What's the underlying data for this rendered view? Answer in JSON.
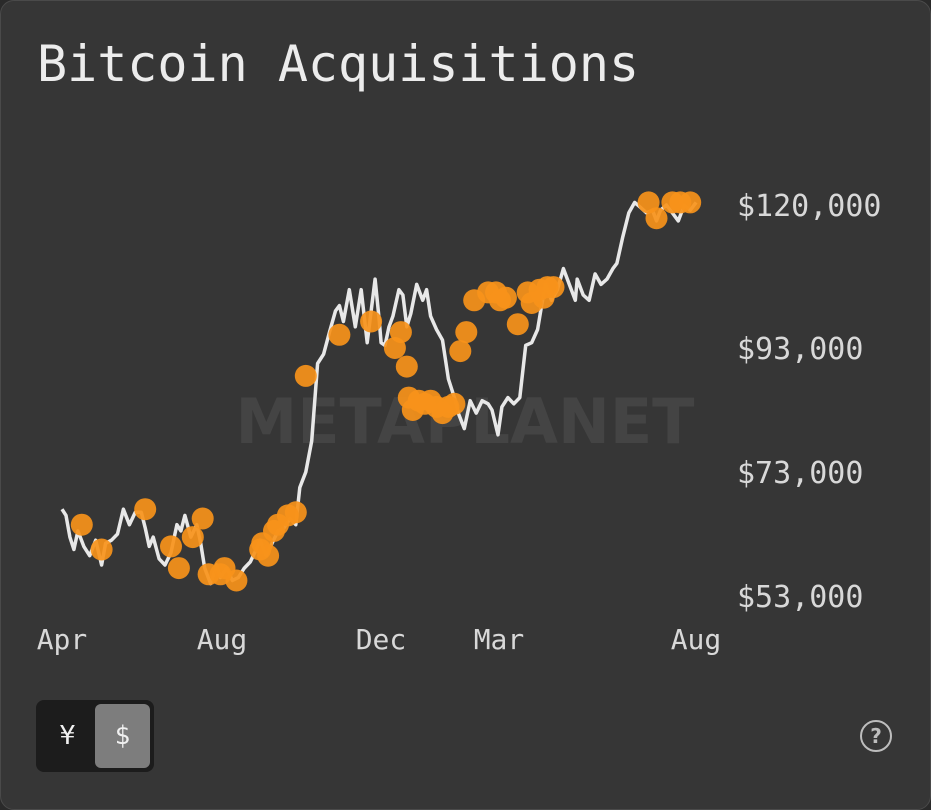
{
  "title": "Bitcoin Acquisitions",
  "watermark": "METAPLANET",
  "currency_toggle": {
    "options": [
      "¥",
      "$"
    ],
    "selected": "$"
  },
  "help_icon": "question-circle-icon",
  "colors": {
    "background": "#363636",
    "line": "#e8e8e8",
    "marker": "#f7931a",
    "text": "#d8d8d8"
  },
  "chart_data": {
    "type": "line",
    "title": "Bitcoin Acquisitions",
    "x_tick_labels": [
      "Apr",
      "Aug",
      "Dec",
      "Mar",
      "Aug"
    ],
    "y_tick_labels": [
      "$120,000",
      "$93,000",
      "$73,000",
      "$53,000"
    ],
    "y_ticks": [
      120000,
      93000,
      73000,
      53000
    ],
    "ylim": [
      53000,
      120000
    ],
    "xlim": [
      0,
      16.4
    ],
    "price_series": {
      "x": [
        0.0,
        0.1,
        0.2,
        0.3,
        0.4,
        0.55,
        0.7,
        0.85,
        1.0,
        1.1,
        1.25,
        1.4,
        1.55,
        1.7,
        1.85,
        2.0,
        2.1,
        2.2,
        2.3,
        2.45,
        2.6,
        2.75,
        2.9,
        3.0,
        3.1,
        3.25,
        3.4,
        3.5,
        3.6,
        3.75,
        3.9,
        4.0,
        4.15,
        4.3,
        4.45,
        4.6,
        4.75,
        4.9,
        5.0,
        5.15,
        5.3,
        5.45,
        5.6,
        5.75,
        5.9,
        6.0,
        6.15,
        6.3,
        6.45,
        6.6,
        6.75,
        6.9,
        7.0,
        7.1,
        7.25,
        7.4,
        7.55,
        7.7,
        7.9,
        8.0,
        8.05,
        8.15,
        8.25,
        8.35,
        8.5,
        8.6,
        8.7,
        8.8,
        8.95,
        9.1,
        9.2,
        9.3,
        9.45,
        9.6,
        9.75,
        9.9,
        10.0,
        10.15,
        10.3,
        10.45,
        10.6,
        10.75,
        10.85,
        11.0,
        11.1,
        11.25,
        11.4,
        11.55,
        11.7,
        11.85,
        12.0,
        12.1,
        12.2,
        12.35,
        12.5,
        12.65,
        12.8,
        12.95,
        13.0,
        13.15,
        13.3,
        13.45,
        13.6,
        13.75,
        13.9,
        14.0,
        14.15,
        14.3,
        14.45,
        14.6,
        14.75,
        14.9,
        15.0,
        15.1,
        15.25,
        15.4,
        15.55,
        15.7,
        15.85,
        16.0
      ],
      "y": [
        67000,
        66000,
        62500,
        60500,
        63500,
        61000,
        59500,
        62000,
        58000,
        61500,
        62000,
        63000,
        67000,
        64500,
        66500,
        66500,
        64000,
        61000,
        62500,
        59000,
        58000,
        60000,
        64500,
        63500,
        66000,
        62500,
        64500,
        61500,
        57500,
        55000,
        58000,
        56000,
        57500,
        55500,
        56000,
        57500,
        58500,
        60500,
        62000,
        59500,
        61500,
        63500,
        64000,
        65500,
        64500,
        70500,
        73000,
        78000,
        90500,
        92000,
        96000,
        100000,
        101000,
        98000,
        104000,
        97000,
        104000,
        94000,
        106000,
        98500,
        94000,
        93500,
        97000,
        99000,
        104000,
        103000,
        97000,
        99500,
        105000,
        102000,
        104000,
        99000,
        96500,
        94500,
        88000,
        85000,
        82500,
        80000,
        84500,
        82500,
        84500,
        84000,
        83000,
        79000,
        83500,
        85000,
        84000,
        85000,
        93500,
        94000,
        96500,
        101000,
        105000,
        102000,
        104000,
        108000,
        105000,
        102000,
        106000,
        103000,
        102000,
        107000,
        105000,
        106000,
        108000,
        109000,
        114000,
        118500,
        120500,
        119500,
        118500,
        119000,
        117000,
        119000,
        120000,
        118500,
        117000,
        120000,
        119000,
        120500
      ]
    },
    "acquisitions": {
      "x": [
        0.5,
        1.0,
        2.1,
        2.75,
        2.95,
        3.3,
        3.55,
        3.7,
        4.0,
        4.1,
        4.4,
        5.0,
        5.05,
        5.2,
        5.35,
        5.45,
        5.7,
        5.9,
        6.15,
        7.0,
        7.8,
        8.4,
        8.55,
        8.7,
        8.75,
        8.85,
        9.0,
        9.15,
        9.3,
        9.45,
        9.6,
        9.75,
        9.9,
        10.05,
        10.2,
        10.4,
        10.75,
        10.95,
        11.05,
        11.2,
        11.5,
        11.75,
        11.85,
        12.05,
        12.15,
        12.25,
        12.4,
        14.8,
        15.0,
        15.4,
        15.6,
        15.85
      ],
      "y": [
        64500,
        60500,
        67000,
        61000,
        57500,
        62500,
        65500,
        56500,
        56500,
        57500,
        55500,
        60500,
        61500,
        59500,
        63500,
        64500,
        66000,
        66500,
        88500,
        95500,
        98000,
        93000,
        96000,
        90000,
        85000,
        83000,
        84500,
        84000,
        84500,
        83500,
        82500,
        83500,
        84000,
        92500,
        96000,
        102000,
        103500,
        103500,
        102000,
        102500,
        97500,
        103500,
        101500,
        104000,
        102500,
        104500,
        104500,
        120500,
        117500,
        120500,
        120500,
        120500
      ]
    }
  }
}
